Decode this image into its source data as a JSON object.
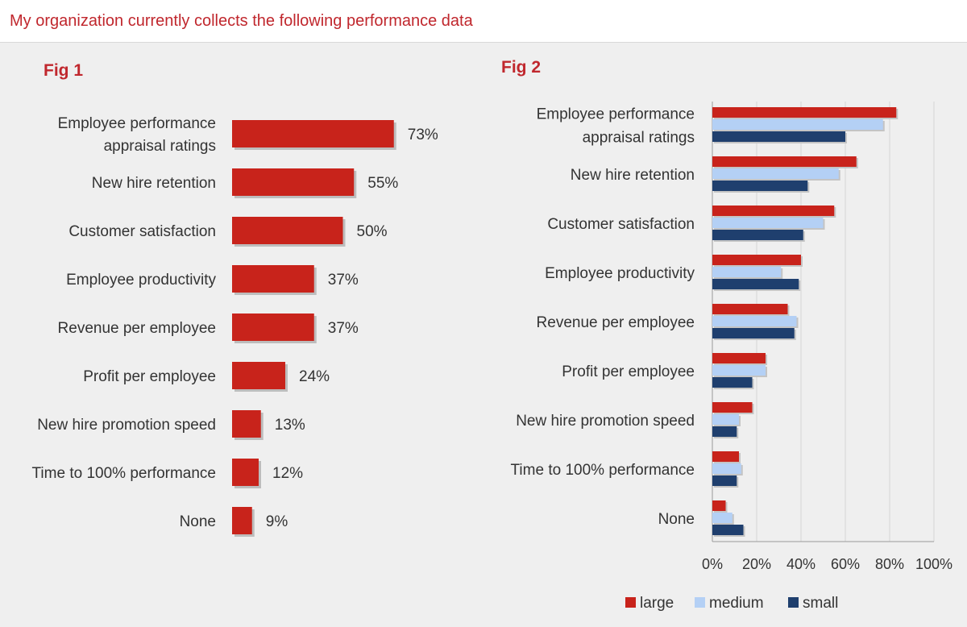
{
  "header": {
    "title": "My organization currently collects the following performance data"
  },
  "chart_data": [
    {
      "type": "bar",
      "title": "Fig 1",
      "orientation": "horizontal",
      "categories": [
        [
          "Employee performance",
          "appraisal ratings"
        ],
        [
          "New hire retention"
        ],
        [
          "Customer satisfaction"
        ],
        [
          "Employee productivity"
        ],
        [
          "Revenue per employee"
        ],
        [
          "Profit per employee"
        ],
        [
          "New hire promotion speed"
        ],
        [
          "Time to 100% performance"
        ],
        [
          "None"
        ]
      ],
      "values": [
        73,
        55,
        50,
        37,
        37,
        24,
        13,
        12,
        9
      ],
      "value_labels": [
        "73%",
        "55%",
        "50%",
        "37%",
        "37%",
        "24%",
        "13%",
        "12%",
        "9%"
      ],
      "unit": "%",
      "color": "#c8231b"
    },
    {
      "type": "bar",
      "title": "Fig 2",
      "orientation": "horizontal",
      "categories": [
        [
          "Employee performance",
          "appraisal ratings"
        ],
        [
          "New hire retention"
        ],
        [
          "Customer satisfaction"
        ],
        [
          "Employee productivity"
        ],
        [
          "Revenue per employee"
        ],
        [
          "Profit per employee"
        ],
        [
          "New hire promotion speed"
        ],
        [
          "Time to 100% performance"
        ],
        [
          "None"
        ]
      ],
      "series": [
        {
          "name": "large",
          "color": "#c8231b",
          "values": [
            83,
            65,
            55,
            40,
            34,
            24,
            18,
            12,
            6
          ]
        },
        {
          "name": "medium",
          "color": "#b4d0f5",
          "values": [
            77,
            57,
            50,
            31,
            38,
            24,
            12,
            13,
            9
          ]
        },
        {
          "name": "small",
          "color": "#1f3f6e",
          "values": [
            60,
            43,
            41,
            39,
            37,
            18,
            11,
            11,
            14
          ]
        }
      ],
      "xlim": [
        0,
        100
      ],
      "xticks": [
        "0%",
        "20%",
        "40%",
        "60%",
        "80%",
        "100%"
      ],
      "grid": true,
      "legend": "bottom"
    }
  ]
}
